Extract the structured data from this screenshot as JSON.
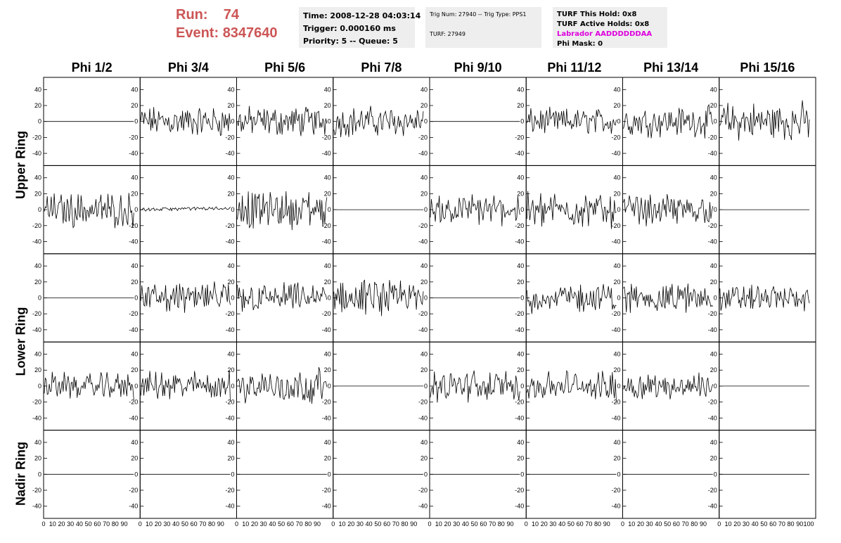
{
  "header": {
    "run_label": "Run:",
    "run_value": "74",
    "event_label": "Event:",
    "event_value": "8347640"
  },
  "info_panel_1": {
    "time": "Time: 2008-12-28 04:03:14",
    "trigger": "Trigger: 0.000160 ms",
    "priority": "Priority: 5 -- Queue: 5"
  },
  "info_panel_2": {
    "trig": "Trig Num: 27940 -- Trig Type: PPS1",
    "turf": "TURF: 27949"
  },
  "info_panel_3": {
    "this_hold": "TURF This Hold: 0x8",
    "active_holds": "TURF Active Holds: 0x8",
    "labrador": "Labrador AADDDDDDAA",
    "phi_mask": "Phi Mask: 0"
  },
  "colors": {
    "run_text": "#cc5555",
    "labrador_text": "#dd00dd",
    "info_bg": "#eeeeee"
  },
  "chart_data": {
    "type": "line",
    "columns": [
      "Phi 1/2",
      "Phi 3/4",
      "Phi 5/6",
      "Phi 7/8",
      "Phi 9/10",
      "Phi 11/12",
      "Phi 13/14",
      "Phi 15/16"
    ],
    "rows": [
      "Upper Ring",
      "Upper Ring",
      "Lower Ring",
      "Lower Ring",
      "Nadir Ring"
    ],
    "row_labels": [
      {
        "text": "Upper Ring"
      },
      {
        "text": "Lower Ring"
      },
      {
        "text": "Nadir Ring"
      }
    ],
    "ylim": [
      -50,
      50
    ],
    "y_ticks": [
      "-40",
      "-20",
      "0",
      "20",
      "40"
    ],
    "xlim": [
      0,
      100
    ],
    "x_ticks_inner": [
      "0",
      "10",
      "20",
      "30",
      "40",
      "50",
      "60",
      "70",
      "80",
      "90"
    ],
    "x_ticks_last": [
      "0",
      "10",
      "20",
      "30",
      "40",
      "50",
      "60",
      "70",
      "80",
      "90",
      "100"
    ],
    "panel_amplitude": [
      [
        0,
        14,
        14,
        14,
        0,
        12,
        14,
        18
      ],
      [
        16,
        2,
        18,
        0,
        14,
        16,
        14,
        0
      ],
      [
        0,
        14,
        14,
        16,
        0,
        14,
        14,
        12
      ],
      [
        12,
        14,
        16,
        0,
        14,
        14,
        12,
        0
      ],
      [
        0,
        0,
        0,
        0,
        0,
        0,
        0,
        0
      ]
    ],
    "samples": 90
  }
}
